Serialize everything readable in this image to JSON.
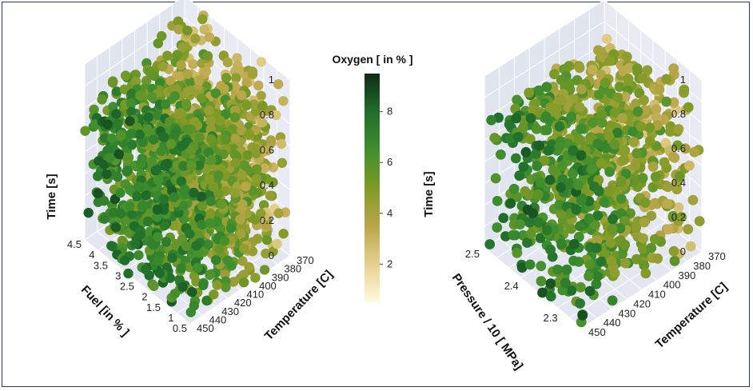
{
  "chart_data": [
    {
      "type": "scatter3d",
      "x_axis": {
        "label": "Fuel [in % ]",
        "ticks": [
          "0.5",
          "1",
          "1.5",
          "2",
          "2.5",
          "3",
          "3.5",
          "4",
          "4.5"
        ],
        "range": [
          0.5,
          4.5
        ]
      },
      "y_axis": {
        "label": "Temperature [C]",
        "ticks": [
          "370",
          "380",
          "390",
          "400",
          "410",
          "420",
          "430",
          "440",
          "450"
        ],
        "range": [
          370,
          450
        ]
      },
      "z_axis": {
        "label": "Time [s]",
        "ticks": [
          "0",
          "0.2",
          "0.4",
          "0.6",
          "0.8",
          "1"
        ],
        "range": [
          0,
          1
        ]
      },
      "color_variable": "Oxygen [ in % ]",
      "point_count": 1500
    },
    {
      "type": "scatter3d",
      "x_axis": {
        "label": "Pressure / 10 [ MPa]",
        "ticks": [
          "2.3",
          "2.4",
          "2.5"
        ],
        "range": [
          2.25,
          2.5
        ]
      },
      "y_axis": {
        "label": "Temperature [C]",
        "ticks": [
          "370",
          "380",
          "390",
          "400",
          "410",
          "420",
          "430",
          "440",
          "450"
        ],
        "range": [
          370,
          450
        ]
      },
      "z_axis": {
        "label": "Time [s]",
        "ticks": [
          "0",
          "0.2",
          "0.4",
          "0.6",
          "0.8",
          "1"
        ],
        "range": [
          0,
          1
        ]
      },
      "color_variable": "Oxygen [ in % ]",
      "point_count": 900
    }
  ],
  "colorbar": {
    "title": "Oxygen [ in % ]",
    "ticks": [
      "2",
      "4",
      "6",
      "8"
    ],
    "range": [
      0.5,
      9.5
    ],
    "colors": [
      "#fffbe0",
      "#e5d18e",
      "#b9a649",
      "#7f9a25",
      "#3f8f2e",
      "#1f6e2b",
      "#102a15"
    ]
  },
  "grid": true,
  "background": "#e8ebf4"
}
